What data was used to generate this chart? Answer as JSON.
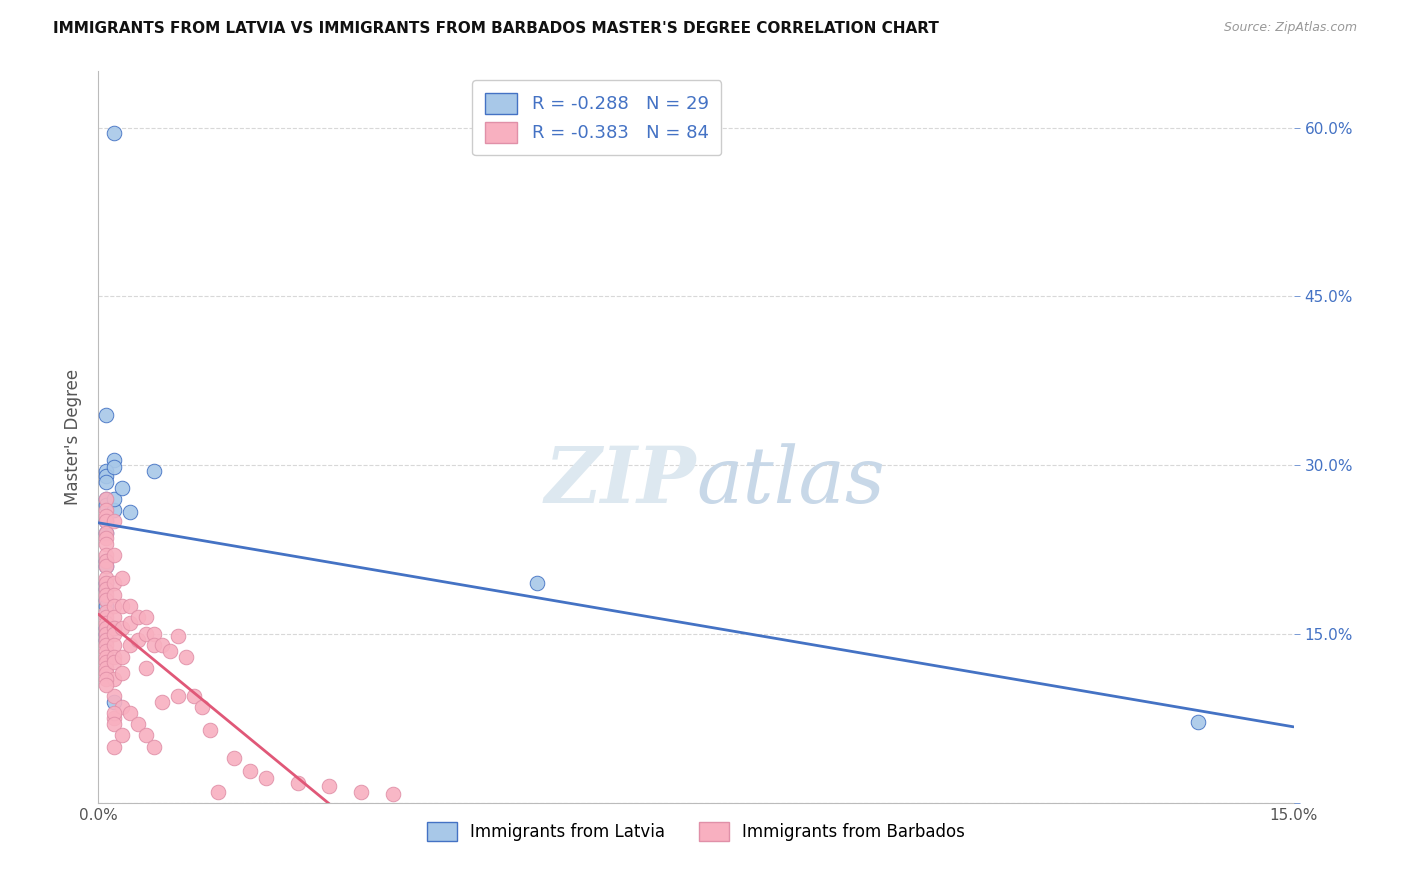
{
  "title": "IMMIGRANTS FROM LATVIA VS IMMIGRANTS FROM BARBADOS MASTER'S DEGREE CORRELATION CHART",
  "source": "Source: ZipAtlas.com",
  "ylabel": "Master's Degree",
  "xlim": [
    0,
    0.15
  ],
  "ylim": [
    0,
    0.65
  ],
  "yticks": [
    0.0,
    0.15,
    0.3,
    0.45,
    0.6
  ],
  "xticks": [
    0.0,
    0.15
  ],
  "legend_r1": "-0.288",
  "legend_n1": "29",
  "legend_r2": "-0.383",
  "legend_n2": "84",
  "latvia_color": "#a8c8e8",
  "barbados_color": "#f8b0c0",
  "trendline_latvia_color": "#4472c4",
  "trendline_barbados_color": "#e05878",
  "watermark_zip": "ZIP",
  "watermark_atlas": "atlas",
  "background_color": "#ffffff",
  "grid_color": "#d8d8d8",
  "latvia_x": [
    0.002,
    0.001,
    0.002,
    0.001,
    0.001,
    0.001,
    0.001,
    0.001,
    0.002,
    0.001,
    0.001,
    0.001,
    0.001,
    0.001,
    0.001,
    0.001,
    0.001,
    0.002,
    0.001,
    0.001,
    0.002,
    0.004,
    0.001,
    0.002,
    0.002,
    0.003,
    0.007,
    0.055,
    0.138
  ],
  "latvia_y": [
    0.595,
    0.345,
    0.305,
    0.295,
    0.29,
    0.285,
    0.27,
    0.265,
    0.26,
    0.24,
    0.215,
    0.21,
    0.195,
    0.19,
    0.18,
    0.175,
    0.155,
    0.155,
    0.15,
    0.145,
    0.09,
    0.258,
    0.25,
    0.298,
    0.27,
    0.28,
    0.295,
    0.195,
    0.072
  ],
  "barbados_x": [
    0.001,
    0.001,
    0.001,
    0.001,
    0.001,
    0.001,
    0.001,
    0.001,
    0.001,
    0.001,
    0.001,
    0.001,
    0.001,
    0.001,
    0.001,
    0.001,
    0.001,
    0.001,
    0.001,
    0.001,
    0.001,
    0.001,
    0.001,
    0.001,
    0.001,
    0.001,
    0.001,
    0.002,
    0.002,
    0.002,
    0.002,
    0.002,
    0.002,
    0.002,
    0.002,
    0.002,
    0.002,
    0.002,
    0.002,
    0.002,
    0.002,
    0.002,
    0.003,
    0.003,
    0.003,
    0.003,
    0.003,
    0.003,
    0.004,
    0.004,
    0.004,
    0.004,
    0.005,
    0.005,
    0.005,
    0.006,
    0.006,
    0.006,
    0.006,
    0.007,
    0.007,
    0.007,
    0.008,
    0.008,
    0.009,
    0.01,
    0.01,
    0.011,
    0.012,
    0.013,
    0.014,
    0.015,
    0.017,
    0.019,
    0.021,
    0.025,
    0.029,
    0.033,
    0.037,
    0.001,
    0.001,
    0.002,
    0.002,
    0.003
  ],
  "barbados_y": [
    0.27,
    0.26,
    0.255,
    0.25,
    0.24,
    0.235,
    0.23,
    0.22,
    0.215,
    0.21,
    0.2,
    0.195,
    0.19,
    0.185,
    0.18,
    0.17,
    0.165,
    0.16,
    0.155,
    0.15,
    0.145,
    0.14,
    0.135,
    0.13,
    0.125,
    0.12,
    0.115,
    0.25,
    0.22,
    0.195,
    0.185,
    0.175,
    0.165,
    0.155,
    0.15,
    0.14,
    0.13,
    0.125,
    0.11,
    0.095,
    0.075,
    0.05,
    0.2,
    0.175,
    0.155,
    0.13,
    0.115,
    0.085,
    0.175,
    0.16,
    0.14,
    0.08,
    0.165,
    0.145,
    0.07,
    0.165,
    0.15,
    0.12,
    0.06,
    0.15,
    0.14,
    0.05,
    0.14,
    0.09,
    0.135,
    0.148,
    0.095,
    0.13,
    0.095,
    0.085,
    0.065,
    0.01,
    0.04,
    0.028,
    0.022,
    0.018,
    0.015,
    0.01,
    0.008,
    0.11,
    0.105,
    0.08,
    0.07,
    0.06
  ]
}
